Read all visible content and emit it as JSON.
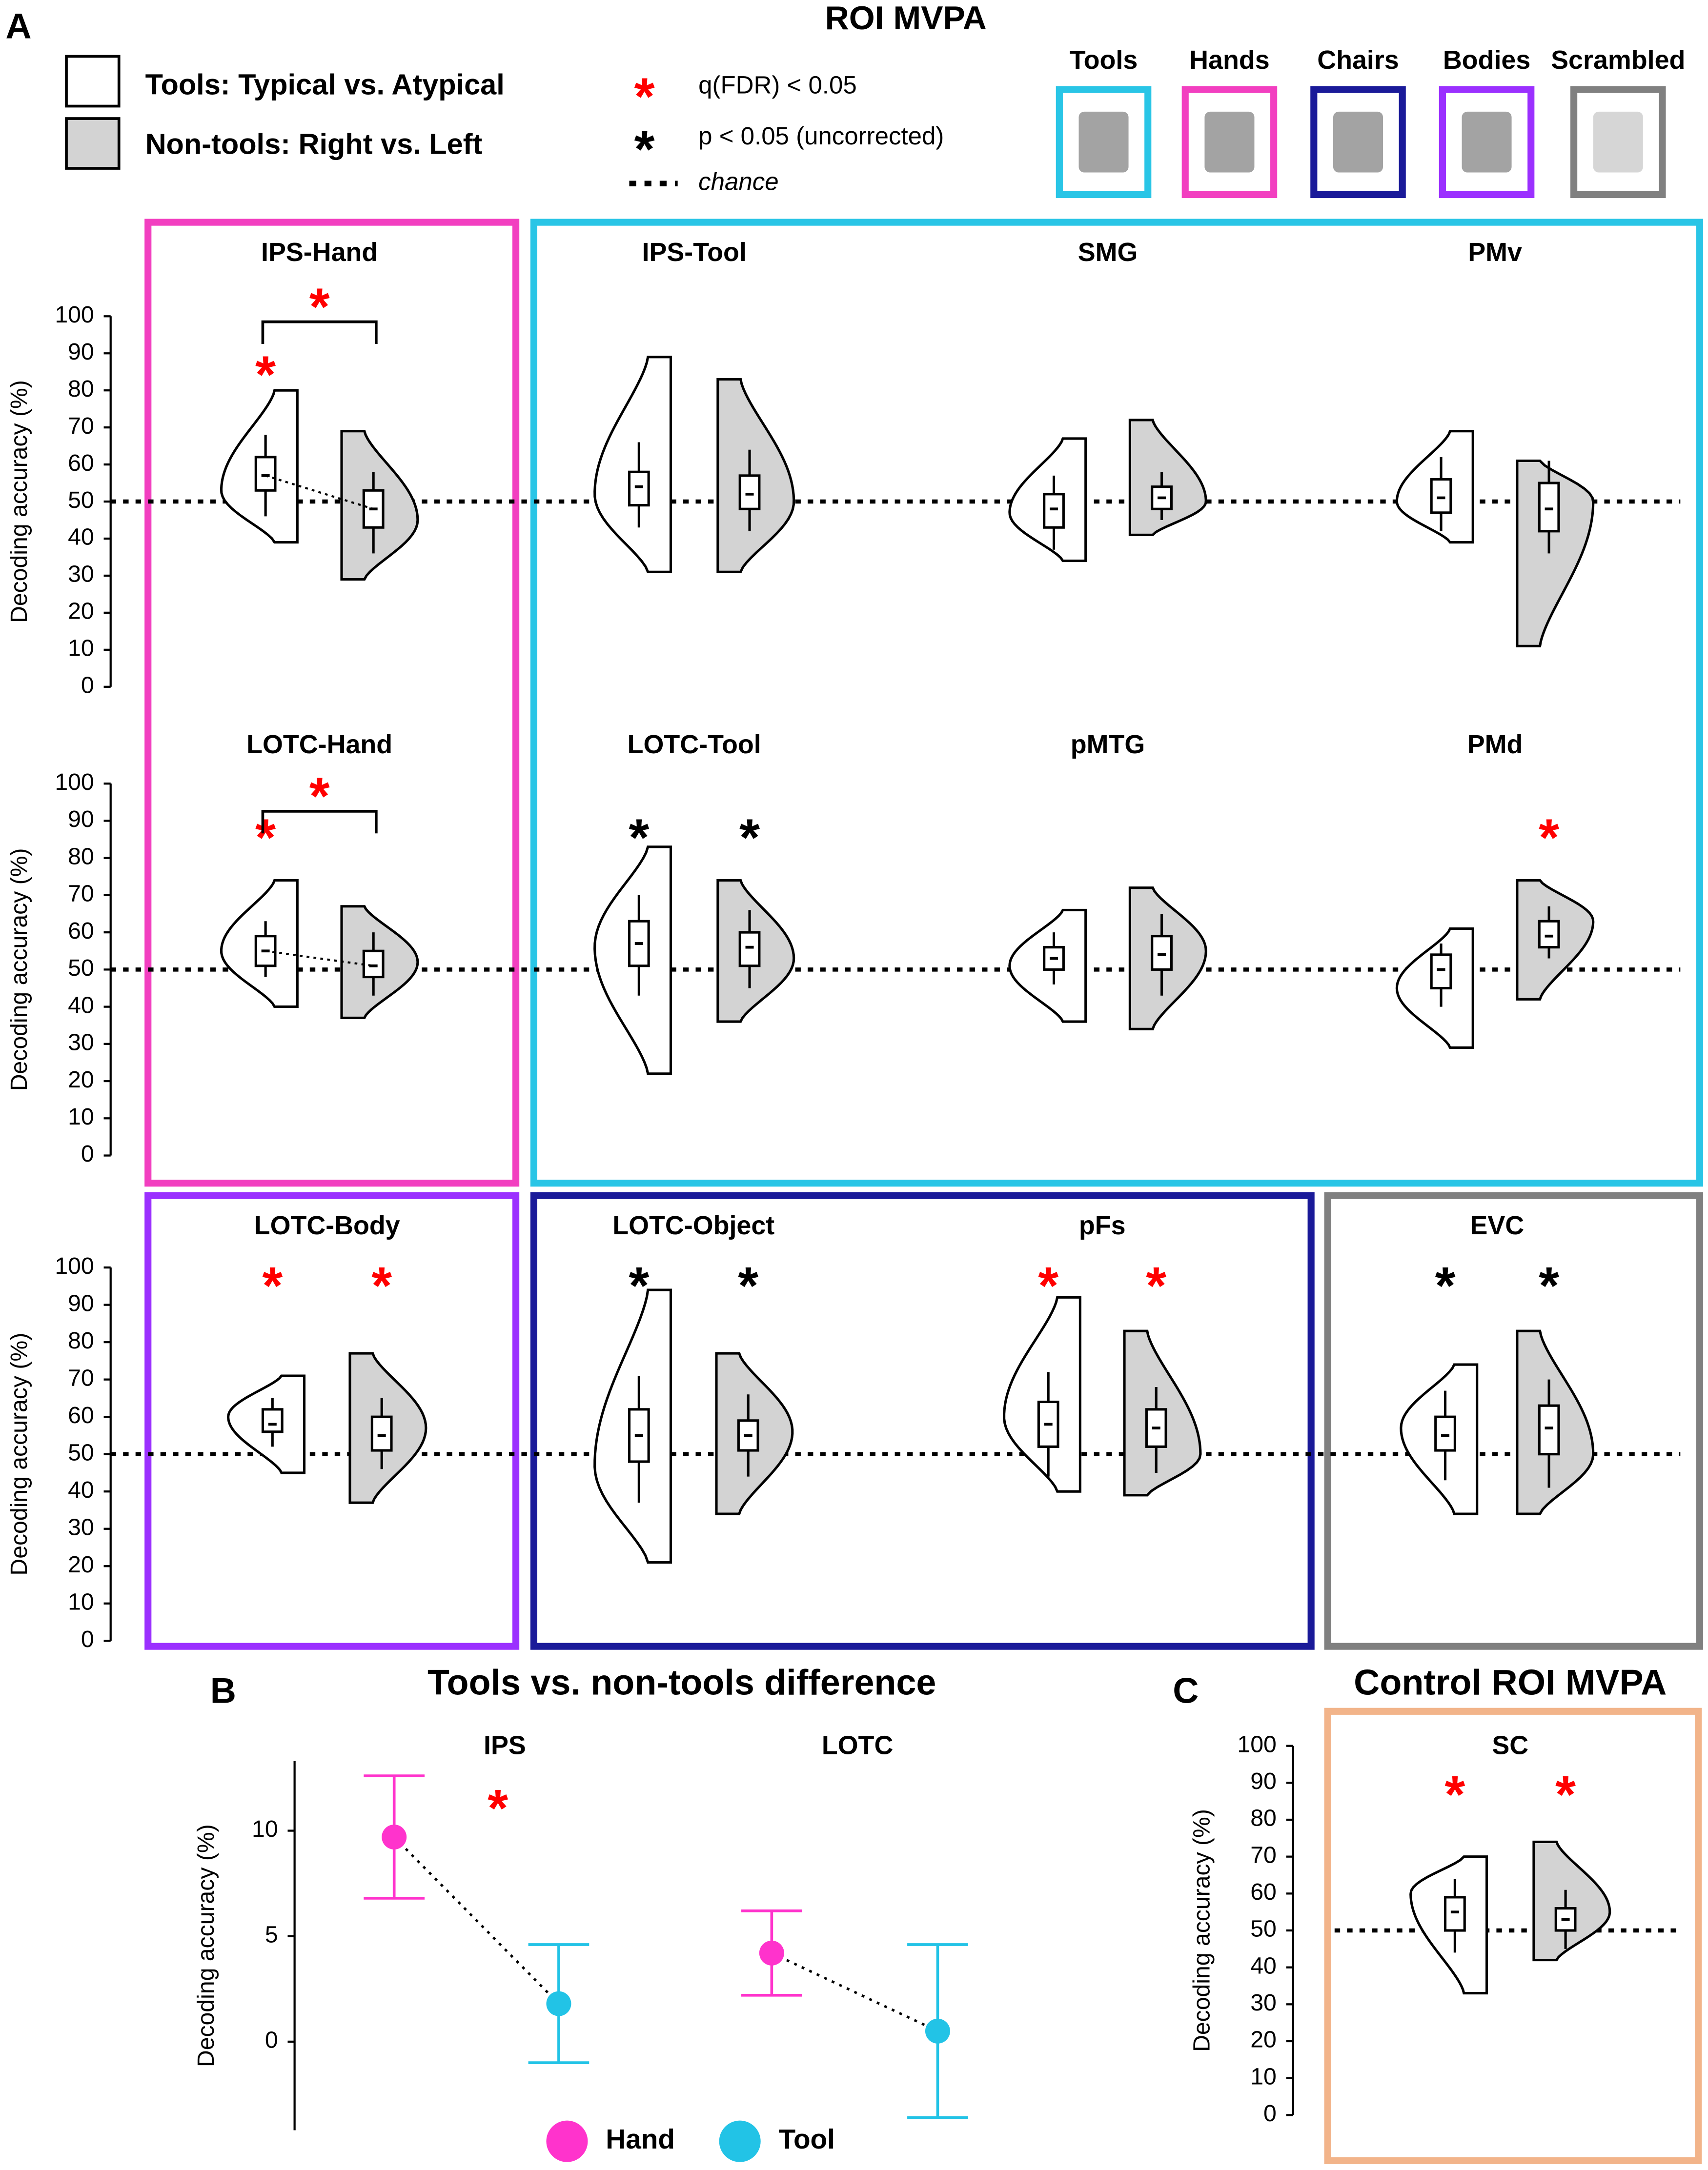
{
  "title": "ROI MVPA",
  "control_title": "Control ROI MVPA",
  "panel_labels": [
    "A",
    "B",
    "C"
  ],
  "chance": 50,
  "legend": {
    "groups": [
      {
        "name": "Tools: Typical vs. Atypical",
        "color": "#ffffff"
      },
      {
        "name": "Non-tools: Right vs. Left",
        "color": "#d3d3d3"
      }
    ],
    "significance": [
      {
        "symbol": "*",
        "color": "red",
        "text": "q(FDR) < 0.05"
      },
      {
        "symbol": "*",
        "color": "black",
        "text": "p < 0.05 (uncorrected)"
      }
    ],
    "chance_text": "chance"
  },
  "localizers": [
    {
      "name": "Tools",
      "color": "#29c5e6"
    },
    {
      "name": "Hands",
      "color": "#f23fc0"
    },
    {
      "name": "Chairs",
      "color": "#1a1a99"
    },
    {
      "name": "Bodies",
      "color": "#9b30ff"
    },
    {
      "name": "Scrambled",
      "color": "#808080"
    }
  ],
  "chart_data": [
    {
      "type": "violin",
      "title": "IPS-Hand",
      "ylabel": "Decoding accuracy (%)",
      "ylim": [
        0,
        100
      ],
      "yticks": [
        0,
        10,
        20,
        30,
        40,
        50,
        60,
        70,
        80,
        90,
        100
      ],
      "groups": [
        {
          "violin": [
            39,
            80
          ],
          "mode": 53,
          "box": [
            46,
            53,
            57,
            62,
            68
          ],
          "marker": "*",
          "marker_color": "red"
        },
        {
          "violin": [
            29,
            69
          ],
          "mode": 45,
          "box": [
            36,
            43,
            48,
            53,
            58
          ]
        }
      ],
      "comparison": {
        "marker": "*",
        "marker_color": "red"
      }
    },
    {
      "type": "violin",
      "title": "IPS-Tool",
      "ylim": [
        0,
        100
      ],
      "groups": [
        {
          "violin": [
            31,
            89
          ],
          "mode": 52,
          "box": [
            43,
            49,
            54,
            58,
            66
          ]
        },
        {
          "violin": [
            31,
            83
          ],
          "mode": 50,
          "box": [
            42,
            48,
            52,
            57,
            64
          ]
        }
      ]
    },
    {
      "type": "violin",
      "title": "SMG",
      "ylim": [
        0,
        100
      ],
      "groups": [
        {
          "violin": [
            34,
            67
          ],
          "mode": 47,
          "box": [
            37,
            43,
            48,
            52,
            57
          ]
        },
        {
          "violin": [
            41,
            72
          ],
          "mode": 50,
          "box": [
            45,
            48,
            51,
            54,
            58
          ]
        }
      ]
    },
    {
      "type": "violin",
      "title": "PMv",
      "ylim": [
        0,
        100
      ],
      "groups": [
        {
          "violin": [
            39,
            69
          ],
          "mode": 50,
          "box": [
            42,
            47,
            51,
            56,
            62
          ]
        },
        {
          "violin": [
            11,
            61
          ],
          "mode": 50,
          "box": [
            36,
            42,
            48,
            55,
            61
          ]
        }
      ]
    },
    {
      "type": "violin",
      "title": "LOTC-Hand",
      "ylabel": "Decoding accuracy (%)",
      "ylim": [
        0,
        100
      ],
      "yticks": [
        0,
        10,
        20,
        30,
        40,
        50,
        60,
        70,
        80,
        90,
        100
      ],
      "groups": [
        {
          "violin": [
            40,
            74
          ],
          "mode": 55,
          "box": [
            48,
            51,
            55,
            59,
            63
          ],
          "marker": "*",
          "marker_color": "red"
        },
        {
          "violin": [
            37,
            67
          ],
          "mode": 52,
          "box": [
            43,
            48,
            51,
            55,
            60
          ]
        }
      ],
      "comparison": {
        "marker": "*",
        "marker_color": "red"
      }
    },
    {
      "type": "violin",
      "title": "LOTC-Tool",
      "ylim": [
        0,
        100
      ],
      "groups": [
        {
          "violin": [
            22,
            83
          ],
          "mode": 56,
          "box": [
            43,
            51,
            57,
            63,
            70
          ],
          "marker": "*",
          "marker_color": "black"
        },
        {
          "violin": [
            36,
            74
          ],
          "mode": 53,
          "box": [
            45,
            51,
            56,
            60,
            66
          ],
          "marker": "*",
          "marker_color": "black"
        }
      ]
    },
    {
      "type": "violin",
      "title": "pMTG",
      "ylim": [
        0,
        100
      ],
      "groups": [
        {
          "violin": [
            36,
            66
          ],
          "mode": 51,
          "box": [
            46,
            50,
            53,
            56,
            60
          ]
        },
        {
          "violin": [
            34,
            72
          ],
          "mode": 55,
          "box": [
            43,
            50,
            54,
            59,
            65
          ]
        }
      ]
    },
    {
      "type": "violin",
      "title": "PMd",
      "ylim": [
        0,
        100
      ],
      "groups": [
        {
          "violin": [
            29,
            61
          ],
          "mode": 45,
          "box": [
            40,
            45,
            50,
            54,
            57
          ]
        },
        {
          "violin": [
            42,
            74
          ],
          "mode": 63,
          "box": [
            53,
            56,
            59,
            63,
            67
          ],
          "marker": "*",
          "marker_color": "red"
        }
      ]
    },
    {
      "type": "violin",
      "title": "LOTC-Body",
      "ylabel": "Decoding accuracy (%)",
      "ylim": [
        0,
        100
      ],
      "yticks": [
        0,
        10,
        20,
        30,
        40,
        50,
        60,
        70,
        80,
        90,
        100
      ],
      "groups": [
        {
          "violin": [
            45,
            71
          ],
          "mode": 60,
          "box": [
            52,
            56,
            58,
            62,
            65
          ],
          "marker": "*",
          "marker_color": "red"
        },
        {
          "violin": [
            37,
            77
          ],
          "mode": 57,
          "box": [
            46,
            51,
            55,
            60,
            65
          ],
          "marker": "*",
          "marker_color": "red"
        }
      ]
    },
    {
      "type": "violin",
      "title": "LOTC-Object",
      "ylim": [
        0,
        100
      ],
      "groups": [
        {
          "violin": [
            21,
            94
          ],
          "mode": 47,
          "box": [
            37,
            48,
            55,
            62,
            71
          ],
          "marker": "*",
          "marker_color": "black"
        },
        {
          "violin": [
            34,
            77
          ],
          "mode": 56,
          "box": [
            44,
            51,
            55,
            59,
            66
          ],
          "marker": "*",
          "marker_color": "black"
        }
      ]
    },
    {
      "type": "violin",
      "title": "pFs",
      "ylim": [
        0,
        100
      ],
      "groups": [
        {
          "violin": [
            40,
            92
          ],
          "mode": 60,
          "box": [
            44,
            52,
            58,
            64,
            72
          ],
          "marker": "*",
          "marker_color": "red"
        },
        {
          "violin": [
            39,
            83
          ],
          "mode": 50,
          "box": [
            45,
            52,
            57,
            62,
            68
          ],
          "marker": "*",
          "marker_color": "red"
        }
      ]
    },
    {
      "type": "violin",
      "title": "EVC",
      "ylim": [
        0,
        100
      ],
      "groups": [
        {
          "violin": [
            34,
            74
          ],
          "mode": 57,
          "box": [
            43,
            51,
            55,
            60,
            67
          ],
          "marker": "*",
          "marker_color": "black"
        },
        {
          "violin": [
            34,
            83
          ],
          "mode": 50,
          "box": [
            41,
            50,
            57,
            63,
            70
          ],
          "marker": "*",
          "marker_color": "black"
        }
      ]
    },
    {
      "type": "violin",
      "title": "SC",
      "ylabel": "Decoding accuracy (%)",
      "ylim": [
        0,
        100
      ],
      "yticks": [
        0,
        10,
        20,
        30,
        40,
        50,
        60,
        70,
        80,
        90,
        100
      ],
      "groups": [
        {
          "violin": [
            33,
            70
          ],
          "mode": 60,
          "box": [
            44,
            50,
            55,
            59,
            64
          ],
          "marker": "*",
          "marker_color": "red"
        },
        {
          "violin": [
            42,
            74
          ],
          "mode": 55,
          "box": [
            45,
            50,
            53,
            56,
            61
          ],
          "marker": "*",
          "marker_color": "red"
        }
      ]
    },
    {
      "type": "errorbar",
      "title": "Tools vs. non-tools difference",
      "ylabel": "Decoding accuracy (%)",
      "ylim": [
        -4.2,
        13.3
      ],
      "yticks": [
        0,
        5,
        10
      ],
      "categories": [
        "IPS",
        "LOTC"
      ],
      "series": [
        {
          "name": "Hand",
          "color": "#ff33cc",
          "values": [
            9.7,
            4.2
          ],
          "errors": [
            2.9,
            2.0
          ]
        },
        {
          "name": "Tool",
          "color": "#22c3e6",
          "values": [
            1.8,
            0.5
          ],
          "errors": [
            2.8,
            4.1
          ]
        }
      ],
      "markers": [
        "*",
        null
      ],
      "marker_color": "red"
    }
  ]
}
